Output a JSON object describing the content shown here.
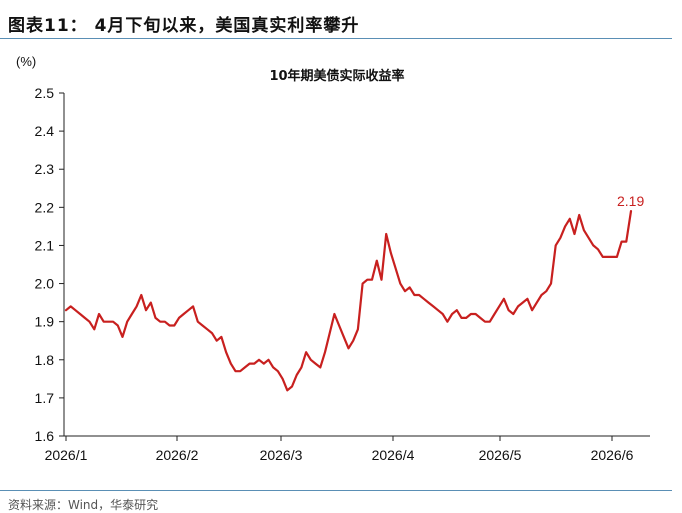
{
  "figure": {
    "title": "图表11： 4月下旬以来，美国真实利率攀升",
    "source": "资料来源：Wind，华泰研究"
  },
  "colors": {
    "line": "#c8201f",
    "axis": "#222222",
    "rule": "#5a8fb5"
  },
  "chart_data": {
    "type": "line",
    "title": "10年期美债实际收益率",
    "unit_label": "(%)",
    "ylim": [
      1.6,
      2.5
    ],
    "yticks": [
      "1.6",
      "1.7",
      "1.8",
      "1.9",
      "2.0",
      "2.1",
      "2.2",
      "2.3",
      "2.4",
      "2.5"
    ],
    "xticks": [
      "2026/1",
      "2026/2",
      "2026/3",
      "2026/4",
      "2026/5",
      "2026/6"
    ],
    "grid": false,
    "annotation": {
      "text": "2.19",
      "value": 2.19
    },
    "series": [
      {
        "values": [
          1.93,
          1.94,
          1.93,
          1.92,
          1.91,
          1.9,
          1.88,
          1.92,
          1.9,
          1.9,
          1.9,
          1.89,
          1.86,
          1.9,
          1.92,
          1.94,
          1.97,
          1.93,
          1.95,
          1.91,
          1.9,
          1.9,
          1.89,
          1.89,
          1.91,
          1.92,
          1.93,
          1.94,
          1.9,
          1.89,
          1.88,
          1.87,
          1.85,
          1.86,
          1.82,
          1.79,
          1.77,
          1.77,
          1.78,
          1.79,
          1.79,
          1.8,
          1.79,
          1.8,
          1.78,
          1.77,
          1.75,
          1.72,
          1.73,
          1.76,
          1.78,
          1.82,
          1.8,
          1.79,
          1.78,
          1.82,
          1.87,
          1.92,
          1.89,
          1.86,
          1.83,
          1.85,
          1.88,
          2.0,
          2.01,
          2.01,
          2.06,
          2.01,
          2.13,
          2.08,
          2.04,
          2.0,
          1.98,
          1.99,
          1.97,
          1.97,
          1.96,
          1.95,
          1.94,
          1.93,
          1.92,
          1.9,
          1.92,
          1.93,
          1.91,
          1.91,
          1.92,
          1.92,
          1.91,
          1.9,
          1.9,
          1.92,
          1.94,
          1.96,
          1.93,
          1.92,
          1.94,
          1.95,
          1.96,
          1.93,
          1.95,
          1.97,
          1.98,
          2.0,
          2.1,
          2.12,
          2.15,
          2.17,
          2.13,
          2.18,
          2.14,
          2.12,
          2.1,
          2.09,
          2.07,
          2.07,
          2.07,
          2.07,
          2.11,
          2.11,
          2.19
        ]
      }
    ]
  }
}
